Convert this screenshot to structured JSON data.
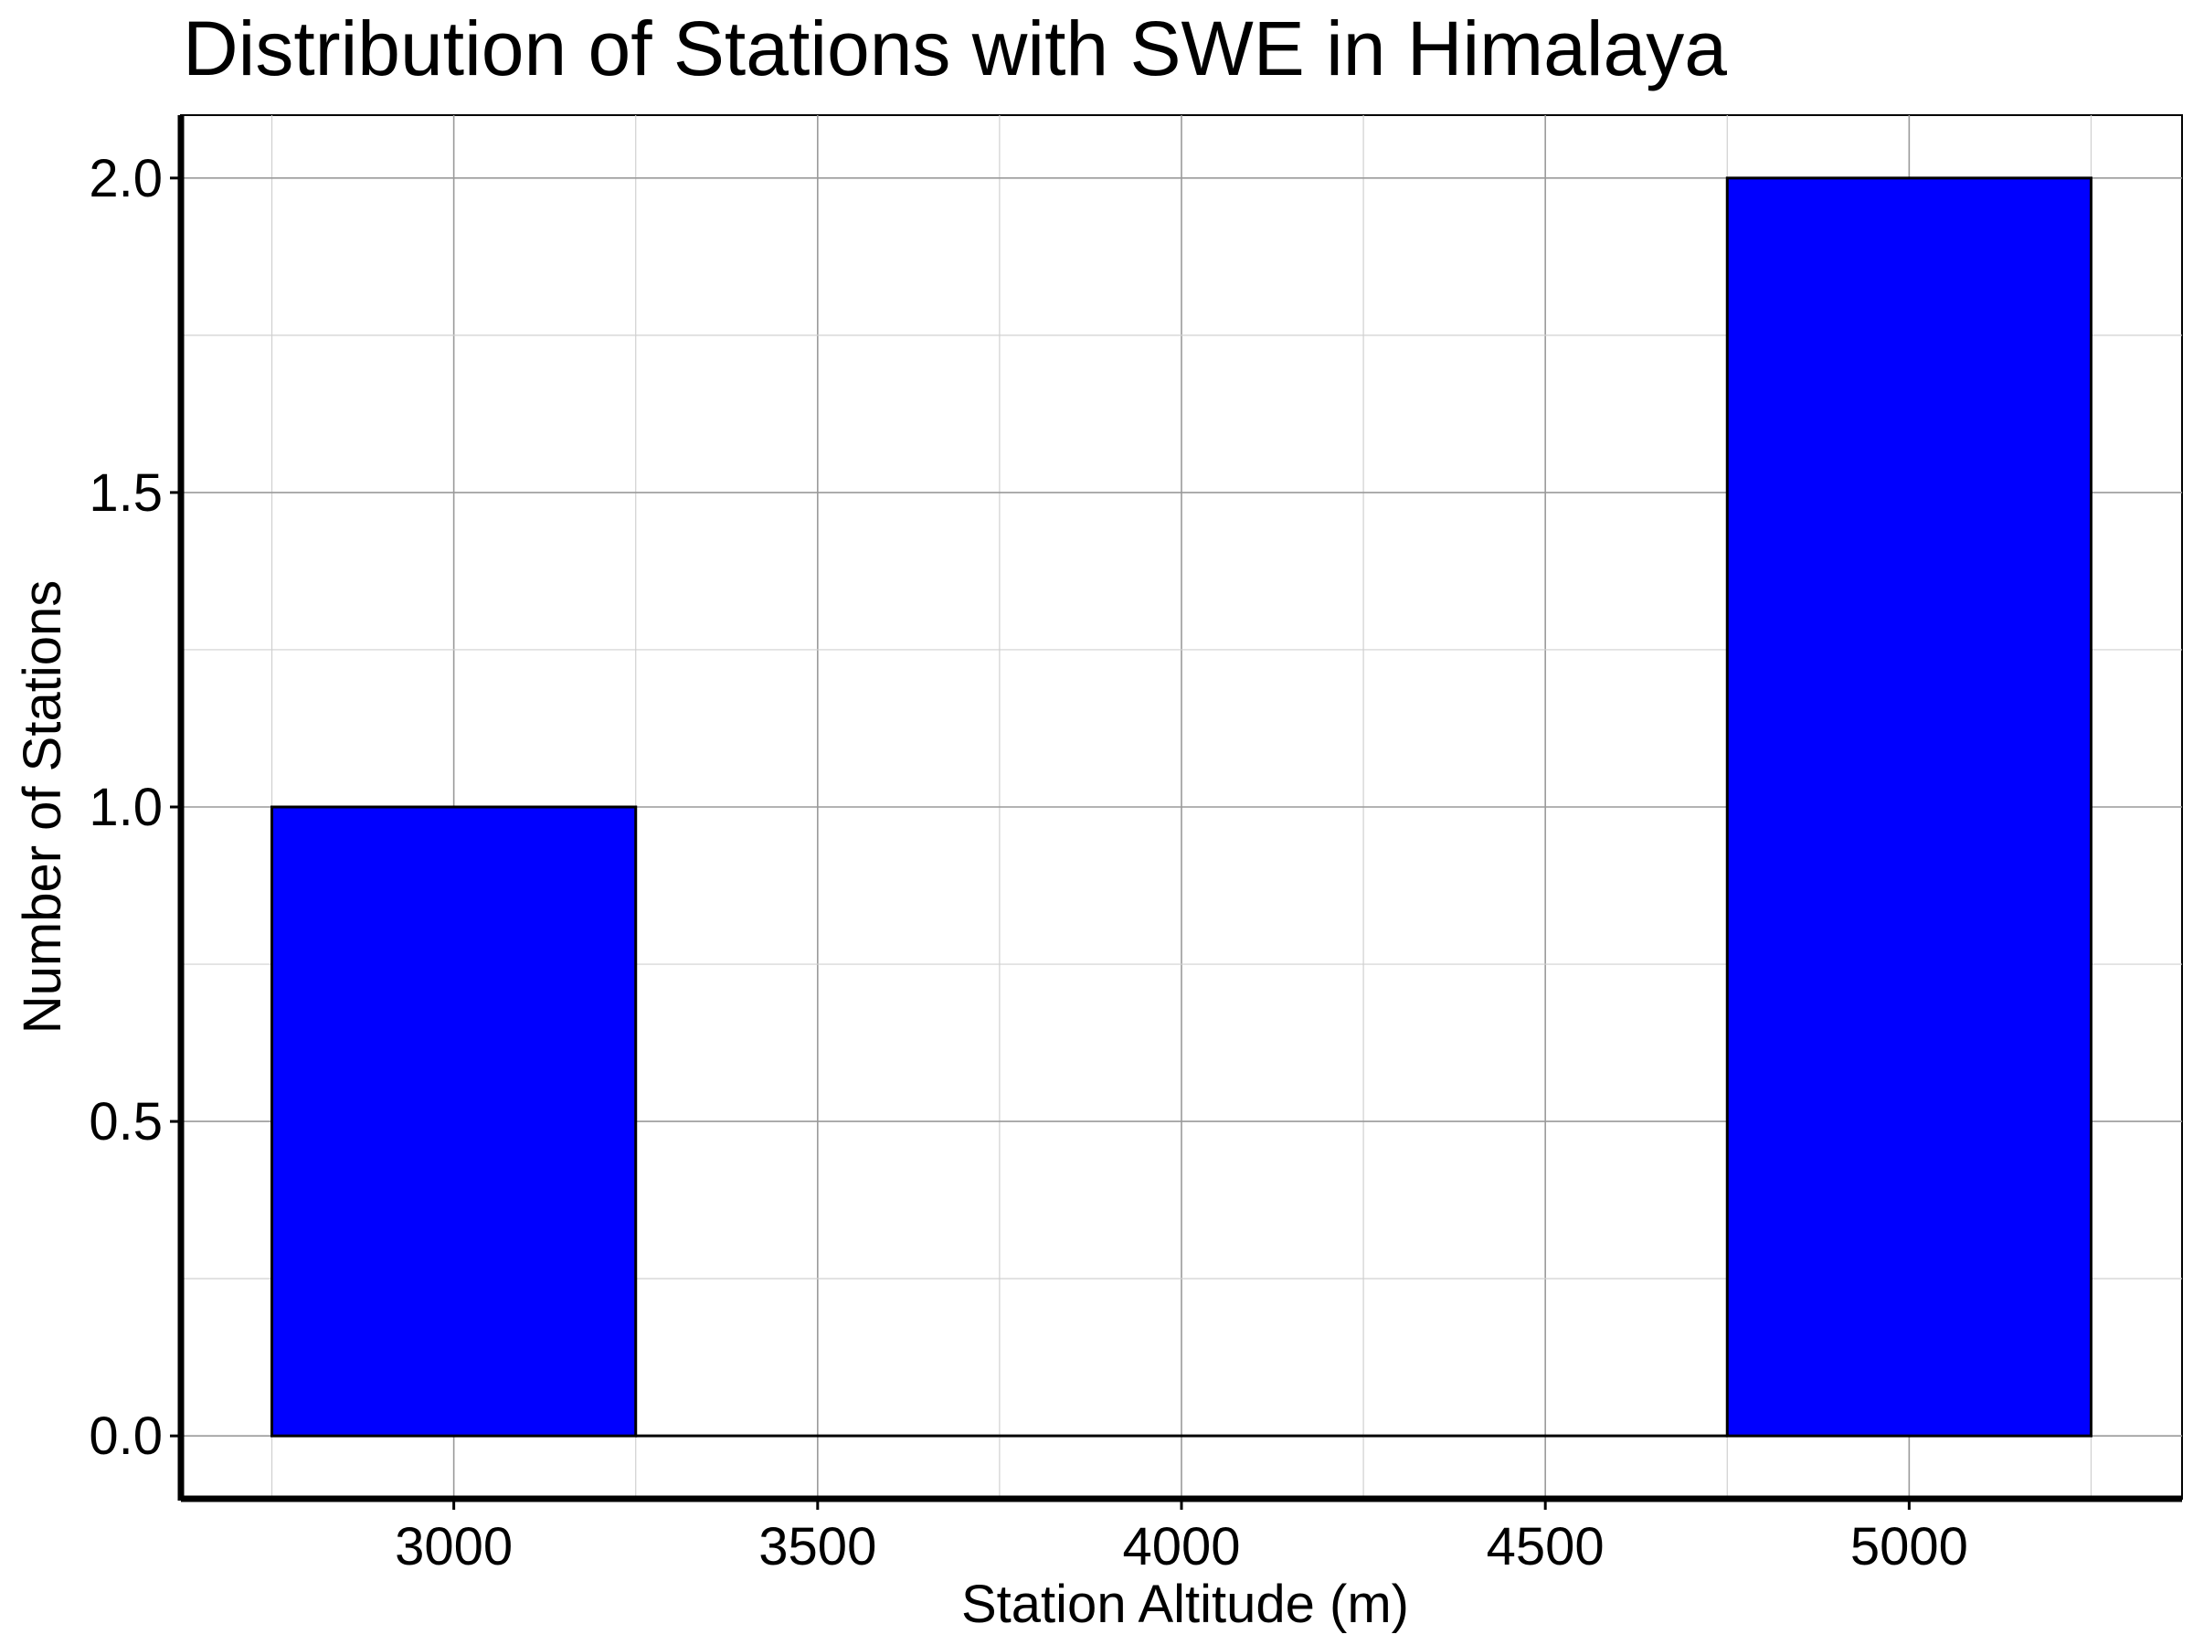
{
  "chart_data": {
    "type": "bar",
    "title": "Distribution of Stations with SWE in Himalaya",
    "xlabel": "Station Altitude (m)",
    "ylabel": "Number of Stations",
    "bins": [
      {
        "x0": 2750,
        "x1": 3250,
        "count": 1
      },
      {
        "x0": 3250,
        "x1": 3750,
        "count": 0
      },
      {
        "x0": 3750,
        "x1": 4250,
        "count": 0
      },
      {
        "x0": 4250,
        "x1": 4750,
        "count": 0
      },
      {
        "x0": 4750,
        "x1": 5250,
        "count": 2
      }
    ],
    "xticks": [
      3000,
      3500,
      4000,
      4500,
      5000
    ],
    "xtick_labels": [
      "3000",
      "3500",
      "4000",
      "4500",
      "5000"
    ],
    "yticks": [
      0,
      0.5,
      1,
      1.5,
      2
    ],
    "ytick_labels": [
      "0.0",
      "0.5",
      "1.0",
      "1.5",
      "2.0"
    ],
    "xlim": [
      2625,
      5375
    ],
    "ylim": [
      -0.1,
      2.1
    ],
    "grid": true,
    "bar_color": "#0000ff",
    "edge_color": "#000000"
  }
}
